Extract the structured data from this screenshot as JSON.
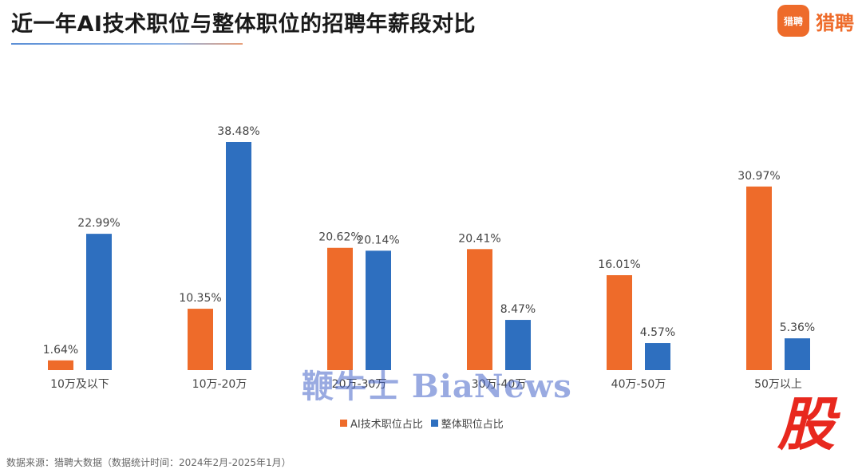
{
  "header": {
    "title": "近一年AI技术职位与整体职位的招聘年薪段对比",
    "logo_icon_text": "猎聘",
    "logo_text": "猎聘"
  },
  "chart_data": {
    "type": "bar",
    "categories": [
      "10万及以下",
      "10万-20万",
      "20万-30万",
      "30万-40万",
      "40万-50万",
      "50万以上"
    ],
    "series": [
      {
        "name": "AI技术职位占比",
        "values": [
          1.64,
          10.35,
          20.62,
          20.41,
          16.01,
          30.97
        ],
        "labels": [
          "1.64%",
          "10.35%",
          "20.62%",
          "20.41%",
          "16.01%",
          "30.97%"
        ],
        "color": "#ee6b2a"
      },
      {
        "name": "整体职位占比",
        "values": [
          22.99,
          38.48,
          20.14,
          8.47,
          4.57,
          5.36
        ],
        "labels": [
          "22.99%",
          "38.48%",
          "20.14%",
          "8.47%",
          "4.57%",
          "5.36%"
        ],
        "color": "#2e6fbf"
      }
    ],
    "ylim": [
      0,
      38.48
    ],
    "legend_position": "bottom-center",
    "grid": false
  },
  "legend": {
    "items": [
      {
        "label": "AI技术职位占比",
        "color": "#ee6b2a"
      },
      {
        "label": "整体职位占比",
        "color": "#2e6fbf"
      }
    ]
  },
  "footer": {
    "source": "数据来源：猎聘大数据（数据统计时间：2024年2月-2025年1月）"
  },
  "watermark": {
    "text": "鞭牛士 BiaNews",
    "stamp": "股"
  }
}
